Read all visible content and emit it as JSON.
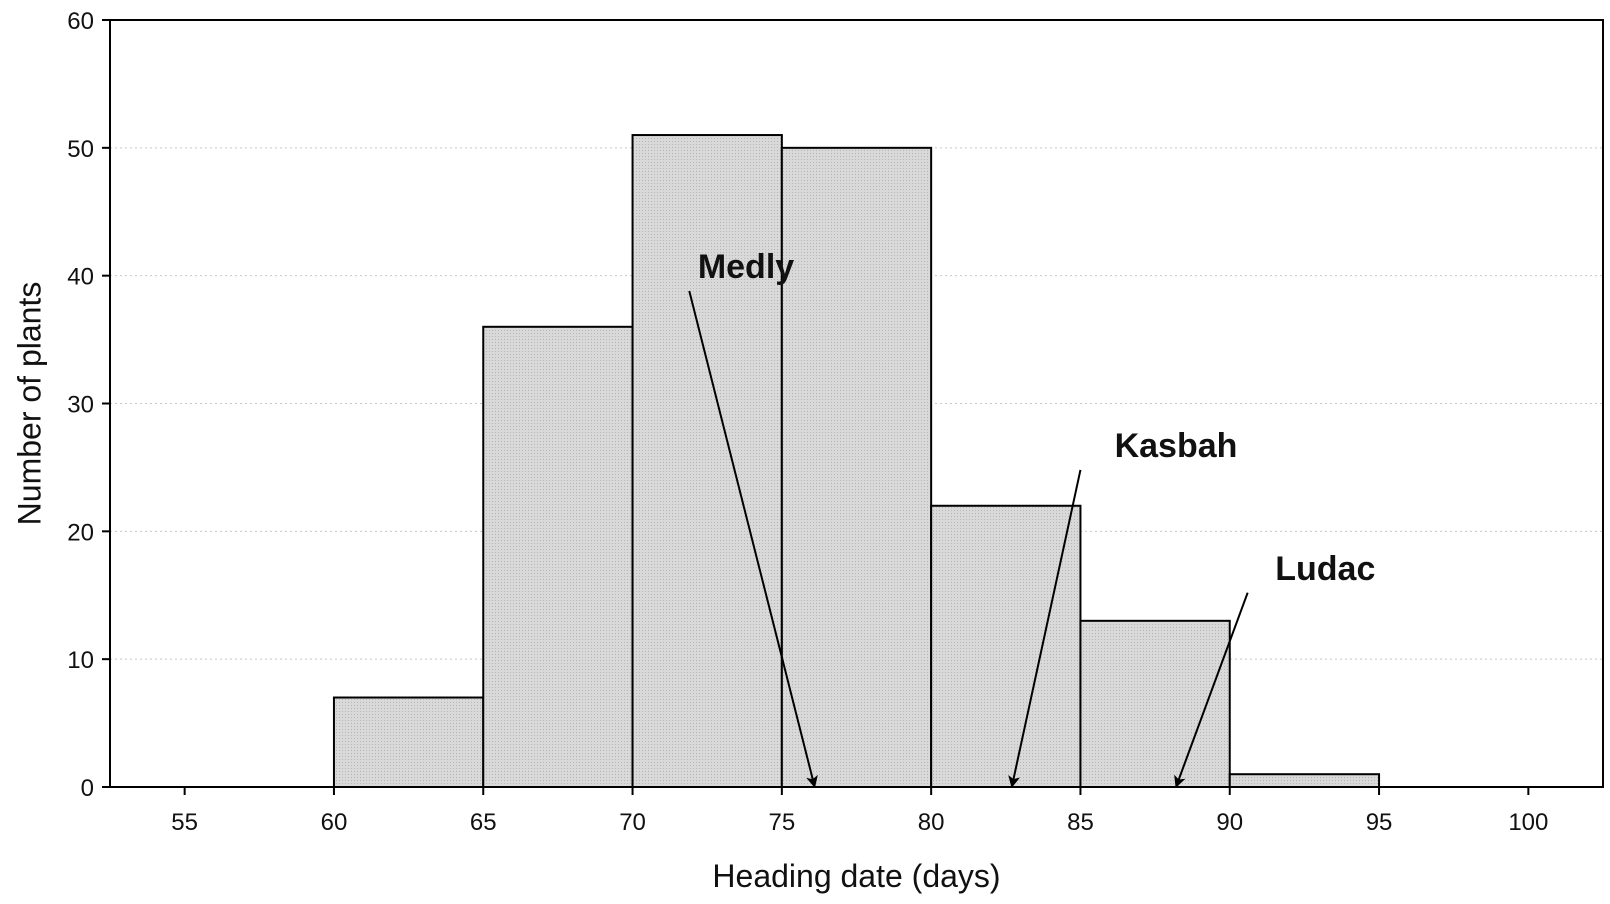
{
  "chart_data": {
    "type": "bar",
    "subtype": "histogram",
    "xlabel": "Heading date (days)",
    "ylabel": "Number of plants",
    "xlim": [
      52.5,
      102.5
    ],
    "ylim": [
      0,
      60
    ],
    "x_ticks": [
      55,
      60,
      65,
      70,
      75,
      80,
      85,
      90,
      95,
      100
    ],
    "y_ticks": [
      0,
      10,
      20,
      30,
      40,
      50,
      60
    ],
    "grid": {
      "y_major": true,
      "x_major": false,
      "style": "dotted"
    },
    "bins": [
      {
        "start": 60,
        "end": 65,
        "count": 7
      },
      {
        "start": 65,
        "end": 70,
        "count": 36
      },
      {
        "start": 70,
        "end": 75,
        "count": 51
      },
      {
        "start": 75,
        "end": 80,
        "count": 50
      },
      {
        "start": 80,
        "end": 85,
        "count": 22
      },
      {
        "start": 85,
        "end": 90,
        "count": 13
      },
      {
        "start": 90,
        "end": 95,
        "count": 1
      }
    ],
    "annotations": [
      {
        "label": "Medly",
        "label_x": 73.8,
        "label_y": 39.8,
        "arrow_from": [
          71.9,
          38.8
        ],
        "arrow_to": [
          76.1,
          0
        ]
      },
      {
        "label": "Kasbah",
        "label_x": 88.2,
        "label_y": 25.8,
        "arrow_from": [
          85.0,
          24.8
        ],
        "arrow_to": [
          82.7,
          0
        ]
      },
      {
        "label": "Ludac",
        "label_x": 93.2,
        "label_y": 16.2,
        "arrow_from": [
          90.6,
          15.2
        ],
        "arrow_to": [
          88.2,
          0
        ]
      }
    ],
    "colors": {
      "bar_fill": "#d4d4d4",
      "bar_stroke": "#000000",
      "grid": "#c8c8c8",
      "axis": "#000000"
    }
  }
}
